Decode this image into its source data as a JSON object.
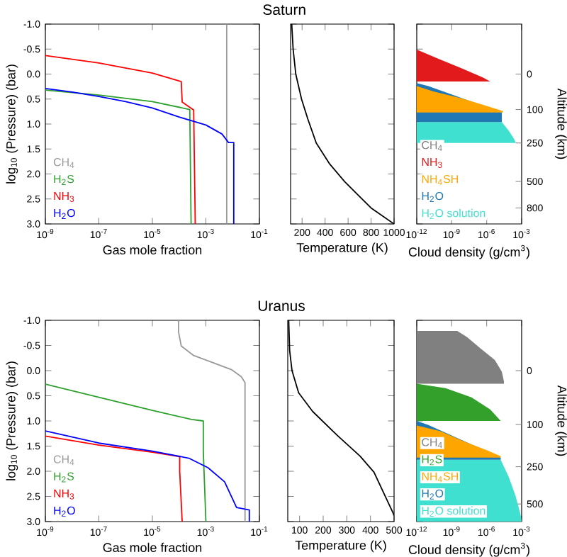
{
  "chart_data": [
    {
      "type": "line",
      "xlabel": "Gas mole fraction",
      "ylabel": "log$_{10}$ (Pressure) (bar)",
      "log": "x",
      "xlim": [
        1e-09,
        0.1
      ],
      "xticks": [
        {
          "value": 1e-09,
          "label": "10$^{-9}$"
        },
        {
          "value": 1e-07,
          "label": "10$^{-7}$"
        },
        {
          "value": 1e-05,
          "label": "10$^{-5}$"
        },
        {
          "value": 0.001,
          "label": "10$^{-3}$"
        },
        {
          "value": 0.1,
          "label": "10$^{-1}$"
        }
      ],
      "ylim": [
        3.0,
        -1.0
      ],
      "yticks": [
        {
          "value": -1.0,
          "label": "-1.0"
        },
        {
          "value": -0.5,
          "label": "-0.5"
        },
        {
          "value": 0.0,
          "label": "0.0"
        },
        {
          "value": 0.5,
          "label": "0.5"
        },
        {
          "value": 1.0,
          "label": "1.0"
        },
        {
          "value": 1.5,
          "label": "1.5"
        },
        {
          "value": 2.0,
          "label": "2.0"
        },
        {
          "value": 2.5,
          "label": "2.5"
        },
        {
          "value": 3.0,
          "label": "3.0"
        }
      ],
      "legend": "bottom left",
      "series": [
        {
          "name": "CH$_{4}$",
          "color": "#999999",
          "x": [
            0.006,
            0.006
          ],
          "values": [
            -1.0,
            3.0
          ]
        },
        {
          "name": "H$_{2}$S",
          "color": "#2ca02c",
          "x": [
            1e-09,
            1e-07,
            1e-05,
            0.00025,
            0.00028
          ],
          "values": [
            0.32,
            0.42,
            0.55,
            0.71,
            3.0
          ]
        },
        {
          "name": "NH$_{3}$",
          "color": "#ff0000",
          "x": [
            1e-09,
            1e-07,
            1e-05,
            0.00012,
            0.00013,
            0.00035,
            0.0004
          ],
          "values": [
            -0.37,
            -0.22,
            -0.02,
            0.15,
            0.56,
            0.72,
            3.0
          ]
        },
        {
          "name": "H$_{2}$O",
          "color": "#0000ff",
          "x": [
            1e-09,
            1e-08,
            1e-07,
            1e-06,
            1e-05,
            0.0001,
            0.001,
            0.004,
            0.007,
            0.011,
            0.011
          ],
          "values": [
            0.29,
            0.36,
            0.45,
            0.55,
            0.68,
            0.86,
            1.02,
            1.2,
            1.37,
            1.37,
            3.0
          ]
        }
      ]
    },
    {
      "type": "line",
      "title": "Saturn",
      "xlabel": "Temperature (K)",
      "xlim": [
        100,
        1000
      ],
      "xticks": [
        200,
        400,
        600,
        800,
        1000
      ],
      "ylim": [
        3.0,
        -1.0
      ],
      "yticks": [
        -1.0,
        -0.5,
        0.0,
        0.5,
        1.0,
        1.5,
        2.0,
        2.5,
        3.0
      ],
      "tick_labels": "x",
      "series": [
        {
          "color": "#000000",
          "x": [
            110,
            122,
            145,
            195,
            250,
            323,
            440,
            569,
            800,
            1000
          ],
          "values": [
            -1.0,
            -0.5,
            0.0,
            0.5,
            0.9,
            1.38,
            1.8,
            2.15,
            2.68,
            3.0
          ]
        }
      ]
    },
    {
      "type": "area",
      "xlabel": "Cloud density (g/cm$^{3}$)",
      "y2label": "Altitude (km)",
      "log": "x",
      "xlim": [
        1e-12,
        0.001
      ],
      "xticks": [
        {
          "value": 1e-12,
          "label": "10$^{-12}$"
        },
        {
          "value": 1e-09,
          "label": "10$^{-9}$"
        },
        {
          "value": 1e-06,
          "label": "10$^{-6}$"
        },
        {
          "value": 0.001,
          "label": "10$^{-3}$"
        }
      ],
      "ylim": [
        3.0,
        -1.0
      ],
      "yticks": [
        -1.0,
        -0.5,
        0.0,
        0.5,
        1.0,
        1.5,
        2.0,
        2.5,
        3.0
      ],
      "tick_labels": "x",
      "annotations": [
        "0",
        "100",
        "250",
        "500",
        "800"
      ],
      "legend": "bottom left",
      "series": [
        {
          "name": "CH$_{4}$",
          "color": "#808080"
        },
        {
          "name": "NH$_{3}$",
          "color": "#e31a1c",
          "x": [
            1e-12,
            8e-11,
            8e-09,
            5e-07,
            2e-06,
            1e-12
          ],
          "values": [
            -0.49,
            -0.3,
            -0.11,
            0.07,
            0.15,
            0.15
          ]
        },
        {
          "name": "NH$_{4}$SH",
          "color": "#ffa500",
          "x": [
            1e-12,
            3e-11,
            8e-09,
            8e-07,
            2.5e-05,
            2.5e-05,
            1e-12
          ],
          "values": [
            0.24,
            0.35,
            0.49,
            0.63,
            0.74,
            0.77,
            0.77
          ]
        },
        {
          "name": "H$_{2}$O",
          "color": "#1f78b4",
          "x": [
            1e-12,
            1e-11,
            2e-05,
            2e-05,
            1e-12
          ],
          "values": [
            0.18,
            0.24,
            0.77,
            0.96,
            0.96
          ]
        },
        {
          "name": "H$_{2}$O solution",
          "color": "#40e0d0",
          "x": [
            1e-12,
            2e-05,
            8e-05,
            0.0002,
            0.0003,
            0.0003,
            1e-12
          ],
          "values": [
            0.96,
            0.96,
            1.14,
            1.28,
            1.36,
            1.38,
            1.38
          ]
        }
      ]
    },
    {
      "type": "line",
      "xlabel": "Gas mole fraction",
      "ylabel": "log$_{10}$ (Pressure) (bar)",
      "log": "x",
      "xlim": [
        1e-09,
        0.1
      ],
      "xticks": [
        {
          "value": 1e-09,
          "label": "10$^{-9}$"
        },
        {
          "value": 1e-07,
          "label": "10$^{-7}$"
        },
        {
          "value": 1e-05,
          "label": "10$^{-5}$"
        },
        {
          "value": 0.001,
          "label": "10$^{-3}$"
        },
        {
          "value": 0.1,
          "label": "10$^{-1}$"
        }
      ],
      "ylim": [
        3.0,
        -1.0
      ],
      "yticks": [
        {
          "value": -1.0,
          "label": "-1.0"
        },
        {
          "value": -0.5,
          "label": "-0.5"
        },
        {
          "value": 0.0,
          "label": "0.0"
        },
        {
          "value": 0.5,
          "label": "0.5"
        },
        {
          "value": 1.0,
          "label": "1.0"
        },
        {
          "value": 1.5,
          "label": "1.5"
        },
        {
          "value": 2.0,
          "label": "2.0"
        },
        {
          "value": 2.5,
          "label": "2.5"
        },
        {
          "value": 3.0,
          "label": "3.0"
        }
      ],
      "legend": "bottom left",
      "series": [
        {
          "name": "CH$_{4}$",
          "color": "#999999",
          "x": [
            9.5e-05,
            9.5e-05,
            0.00012,
            0.00035,
            0.0018,
            0.009,
            0.021,
            0.029,
            0.029
          ],
          "values": [
            -1.0,
            -0.77,
            -0.49,
            -0.3,
            -0.16,
            -0.02,
            0.12,
            0.24,
            3.0
          ]
        },
        {
          "name": "H$_{2}$S",
          "color": "#2ca02c",
          "x": [
            1e-09,
            1e-07,
            1e-05,
            0.00029,
            0.0008,
            0.0008,
            0.001
          ],
          "values": [
            0.27,
            0.53,
            0.79,
            0.97,
            1.0,
            1.6,
            3.0
          ]
        },
        {
          "name": "NH$_{3}$",
          "color": "#ff0000",
          "x": [
            1e-09,
            1e-07,
            1e-05,
            0.000105,
            0.000105,
            0.00013
          ],
          "values": [
            1.3,
            1.48,
            1.62,
            1.71,
            2.0,
            3.0
          ]
        },
        {
          "name": "H$_{2}$O",
          "color": "#0000ff",
          "x": [
            1e-09,
            1e-07,
            1e-05,
            0.00023,
            0.0012,
            0.005,
            0.014,
            0.042,
            0.042
          ],
          "values": [
            1.2,
            1.44,
            1.6,
            1.74,
            1.93,
            2.21,
            2.72,
            2.77,
            3.0
          ]
        }
      ]
    },
    {
      "type": "line",
      "title": "Uranus",
      "xlabel": "Temperature (K)",
      "xlim": [
        50,
        500
      ],
      "xticks": [
        100,
        200,
        300,
        400,
        500
      ],
      "ylim": [
        3.0,
        -1.0
      ],
      "yticks": [
        -1.0,
        -0.5,
        0.0,
        0.5,
        1.0,
        1.5,
        2.0,
        2.5,
        3.0
      ],
      "tick_labels": "x",
      "series": [
        {
          "color": "#000000",
          "x": [
            54,
            58,
            68,
            96,
            155,
            258,
            356,
            415,
            494,
            500
          ],
          "values": [
            -1.0,
            -0.4,
            0.0,
            0.44,
            0.81,
            1.28,
            1.7,
            2.02,
            2.81,
            2.88
          ]
        }
      ]
    },
    {
      "type": "area",
      "xlabel": "Cloud density (g/cm$^{3}$)",
      "y2label": "Altitude (km)",
      "log": "x",
      "xlim": [
        1e-12,
        0.001
      ],
      "xticks": [
        {
          "value": 1e-12,
          "label": "10$^{-12}$"
        },
        {
          "value": 1e-09,
          "label": "10$^{-9}$"
        },
        {
          "value": 1e-06,
          "label": "10$^{-6}$"
        },
        {
          "value": 0.001,
          "label": "10$^{-3}$"
        }
      ],
      "ylim": [
        3.0,
        -1.0
      ],
      "yticks": [
        -1.0,
        -0.5,
        0.0,
        0.5,
        1.0,
        1.5,
        2.0,
        2.5,
        3.0
      ],
      "tick_labels": "x",
      "annotations": [
        "0",
        "100",
        "250",
        "500"
      ],
      "legend": "bottom left",
      "series": [
        {
          "name": "CH$_{4}$",
          "color": "#808080",
          "x": [
            1e-12,
            3e-09,
            2e-08,
            3e-07,
            5e-06,
            2e-05,
            3e-05,
            3e-05,
            1e-12
          ],
          "values": [
            -0.79,
            -0.79,
            -0.67,
            -0.44,
            -0.21,
            0.02,
            0.21,
            0.26,
            0.26
          ]
        },
        {
          "name": "H$_{2}$S",
          "color": "#33a02c",
          "x": [
            1e-12,
            3e-10,
            5e-08,
            2e-06,
            1.6e-05,
            1e-12
          ],
          "values": [
            0.26,
            0.35,
            0.53,
            0.77,
            1.0,
            1.0
          ]
        },
        {
          "name": "NH$_{4}$SH",
          "color": "#ffa500",
          "x": [
            1e-12,
            1e-10,
            1e-08,
            1e-06,
            1.6e-05,
            1.6e-05,
            1e-12
          ],
          "values": [
            1.09,
            1.2,
            1.4,
            1.58,
            1.7,
            1.73,
            1.73
          ]
        },
        {
          "name": "H$_{2}$O",
          "color": "#1f78b4",
          "x": [
            1e-12,
            1e-11,
            1.6e-05,
            1.6e-05,
            1e-12
          ],
          "values": [
            1.0,
            1.08,
            1.73,
            1.77,
            1.77
          ]
        },
        {
          "name": "H$_{2}$O solution",
          "color": "#40e0d0",
          "x": [
            1e-12,
            1.6e-05,
            8e-05,
            0.0003,
            0.0008,
            0.001,
            1e-12
          ],
          "values": [
            1.77,
            1.77,
            2.12,
            2.49,
            2.86,
            3.0,
            3.0
          ]
        }
      ]
    }
  ]
}
